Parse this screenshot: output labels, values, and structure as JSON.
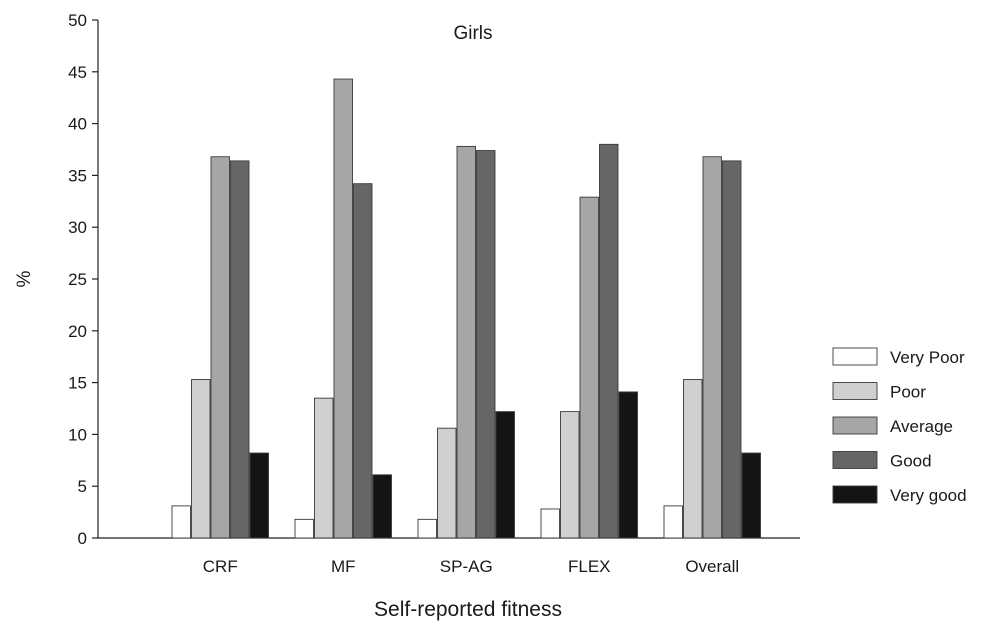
{
  "chart_data": {
    "type": "bar",
    "title": "Girls",
    "xlabel": "Self-reported fitness",
    "ylabel": "%",
    "ylim": [
      0,
      50
    ],
    "yticks": [
      "0",
      "5",
      "10",
      "15",
      "20",
      "25",
      "30",
      "35",
      "40",
      "45",
      "50"
    ],
    "categories": [
      "CRF",
      "MF",
      "SP-AG",
      "FLEX",
      "Overall"
    ],
    "series": [
      {
        "name": "Very Poor",
        "color": "#ffffff",
        "values": [
          3.1,
          1.8,
          1.8,
          2.8,
          3.1
        ]
      },
      {
        "name": "Poor",
        "color": "#d0d0d0",
        "values": [
          15.3,
          13.5,
          10.6,
          12.2,
          15.3
        ]
      },
      {
        "name": "Average",
        "color": "#a6a6a6",
        "values": [
          36.8,
          44.3,
          37.8,
          32.9,
          36.8
        ]
      },
      {
        "name": "Good",
        "color": "#666666",
        "values": [
          36.4,
          34.2,
          37.4,
          38.0,
          36.4
        ]
      },
      {
        "name": "Very good",
        "color": "#141414",
        "values": [
          8.2,
          6.1,
          12.2,
          14.1,
          8.2
        ]
      }
    ],
    "legend_position": "right",
    "grid": false
  }
}
